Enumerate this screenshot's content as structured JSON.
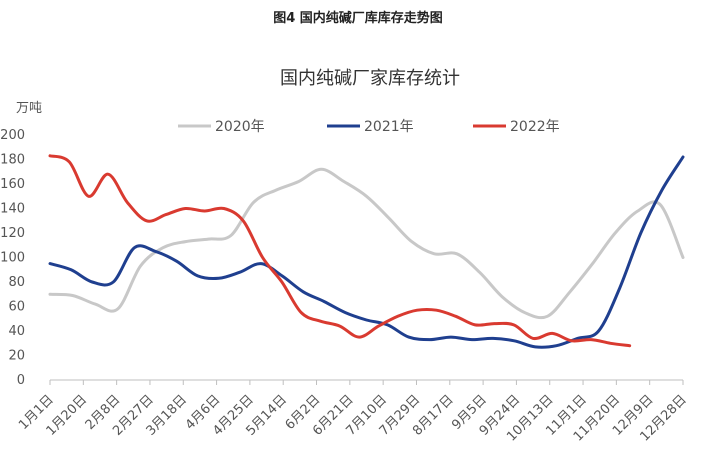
{
  "figure_label": "图4 国内纯碱厂库库存走势图",
  "chart_data": {
    "type": "line",
    "title": "国内纯碱厂家库存统计",
    "ylabel": "万吨",
    "xlabel": "",
    "ylim": [
      0,
      200
    ],
    "yticks": [
      0,
      20,
      40,
      60,
      80,
      100,
      120,
      140,
      160,
      180,
      200
    ],
    "grid": false,
    "legend_position": "top",
    "x_ticks": [
      "1月1日",
      "1月20日",
      "2月8日",
      "2月27日",
      "3月18日",
      "4月6日",
      "4月25日",
      "5月14日",
      "6月2日",
      "6月21日",
      "7月10日",
      "7月29日",
      "8月17日",
      "9月5日",
      "9月24日",
      "10月13日",
      "11月1日",
      "11月20日",
      "12月9日",
      "12月28日"
    ],
    "series": [
      {
        "name": "2020年",
        "color": "#C8C8C8",
        "values": [
          70,
          69,
          62,
          58,
          93,
          108,
          113,
          115,
          118,
          145,
          155,
          162,
          172,
          162,
          150,
          132,
          113,
          103,
          103,
          88,
          68,
          55,
          52,
          72,
          95,
          120,
          138,
          143,
          100
        ]
      },
      {
        "name": "2021年",
        "color": "#1F3F8F",
        "values": [
          95,
          90,
          80,
          80,
          108,
          105,
          97,
          85,
          83,
          88,
          95,
          85,
          72,
          64,
          55,
          49,
          45,
          35,
          33,
          35,
          33,
          34,
          32,
          27,
          28,
          34,
          40,
          75,
          120,
          155,
          182
        ]
      },
      {
        "name": "2022年",
        "color": "#D93A30",
        "values": [
          183,
          178,
          150,
          168,
          145,
          130,
          135,
          140,
          138,
          140,
          130,
          100,
          80,
          55,
          48,
          44,
          35,
          44,
          52,
          57,
          57,
          52,
          45,
          46,
          45,
          34,
          38,
          32,
          33,
          30,
          28
        ]
      }
    ]
  }
}
